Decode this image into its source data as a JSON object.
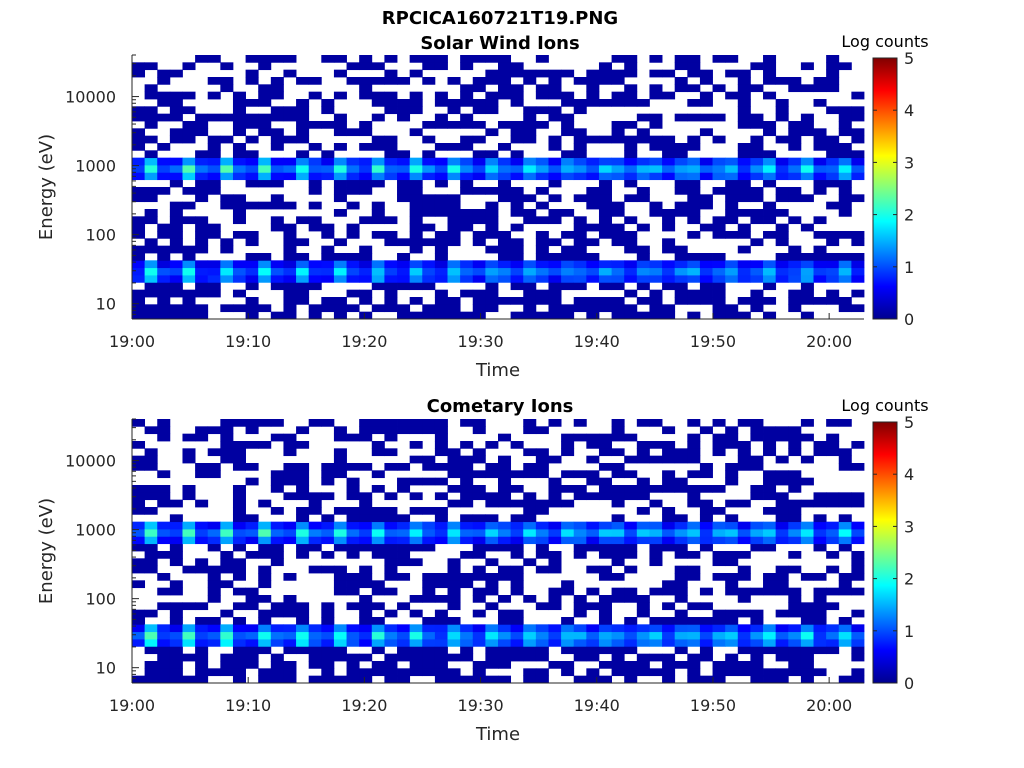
{
  "figure_title": "RPCICA160721T19.PNG",
  "colors": {
    "background": "#ffffff",
    "axis": "#262626",
    "colormap": [
      "#00008f",
      "#0000ff",
      "#0080ff",
      "#00ffff",
      "#80ff80",
      "#ffff00",
      "#ff8000",
      "#ff0000",
      "#800000"
    ]
  },
  "chart_data": [
    {
      "type": "heatmap",
      "title": "Solar Wind Ions",
      "xlabel": "Time",
      "ylabel": "Energy (eV)",
      "x_ticks": [
        "19:00",
        "19:10",
        "19:20",
        "19:30",
        "19:40",
        "19:50",
        "20:00"
      ],
      "x_range": [
        "19:00",
        "20:03"
      ],
      "y_ticks": [
        "10",
        "100",
        "1000",
        "10000"
      ],
      "y_scale": "log",
      "y_range": [
        6,
        40000
      ],
      "colorbar": {
        "label": "Log counts",
        "ticks": [
          "0",
          "1",
          "2",
          "3",
          "4",
          "5"
        ],
        "range": [
          0,
          5
        ],
        "colormap": "jet"
      },
      "features": [
        {
          "energy_eV": 900,
          "peak_log_counts": 2.2,
          "pattern": "periodic, ~3.3 min"
        },
        {
          "energy_eV": 28,
          "peak_log_counts": 2.0,
          "pattern": "periodic, ~3.3 min"
        },
        {
          "energy_eV_range": [
            6,
            40000
          ],
          "background_log_counts": 0.1,
          "pattern": "sparse noise"
        }
      ]
    },
    {
      "type": "heatmap",
      "title": "Cometary Ions",
      "xlabel": "Time",
      "ylabel": "Energy (eV)",
      "x_ticks": [
        "19:00",
        "19:10",
        "19:20",
        "19:30",
        "19:40",
        "19:50",
        "20:00"
      ],
      "x_range": [
        "19:00",
        "20:03"
      ],
      "y_ticks": [
        "10",
        "100",
        "1000",
        "10000"
      ],
      "y_scale": "log",
      "y_range": [
        6,
        40000
      ],
      "colorbar": {
        "label": "Log counts",
        "ticks": [
          "0",
          "1",
          "2",
          "3",
          "4",
          "5"
        ],
        "range": [
          0,
          5
        ],
        "colormap": "jet"
      },
      "features": [
        {
          "energy_eV": 900,
          "peak_log_counts": 2.2,
          "pattern": "periodic, ~3.3 min"
        },
        {
          "energy_eV": 28,
          "peak_log_counts": 2.3,
          "pattern": "periodic, ~3.3 min"
        },
        {
          "energy_eV_range": [
            6,
            40000
          ],
          "background_log_counts": 0.1,
          "pattern": "sparse noise"
        }
      ]
    }
  ]
}
